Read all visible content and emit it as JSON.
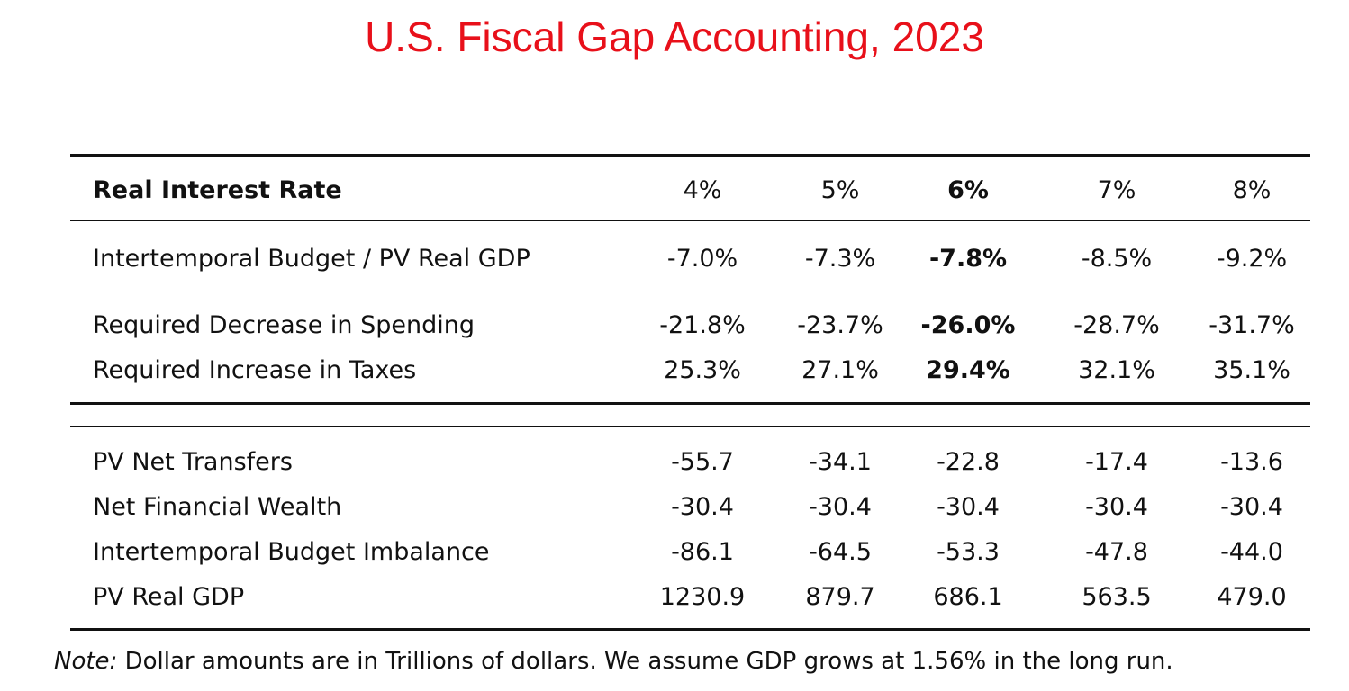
{
  "title": "U.S. Fiscal Gap Accounting, 2023",
  "table": {
    "header_label": "Real Interest Rate",
    "columns": [
      "4%",
      "5%",
      "6%",
      "7%",
      "8%"
    ],
    "highlight_column_index": 2,
    "upper_rows": [
      {
        "label": "Intertemporal Budget / PV Real GDP",
        "values": [
          "-7.0%",
          "-7.3%",
          "-7.8%",
          "-8.5%",
          "-9.2%"
        ]
      },
      {
        "label": "Required Decrease in Spending",
        "values": [
          "-21.8%",
          "-23.7%",
          "-26.0%",
          "-28.7%",
          "-31.7%"
        ]
      },
      {
        "label": "Required Increase in Taxes",
        "values": [
          "25.3%",
          "27.1%",
          "29.4%",
          "32.1%",
          "35.1%"
        ]
      }
    ],
    "lower_rows": [
      {
        "label": "PV Net Transfers",
        "values": [
          "-55.7",
          "-34.1",
          "-22.8",
          "-17.4",
          "-13.6"
        ]
      },
      {
        "label": "Net Financial Wealth",
        "values": [
          "-30.4",
          "-30.4",
          "-30.4",
          "-30.4",
          "-30.4"
        ]
      },
      {
        "label": "Intertemporal Budget Imbalance",
        "values": [
          "-86.1",
          "-64.5",
          "-53.3",
          "-47.8",
          "-44.0"
        ]
      },
      {
        "label": "PV Real GDP",
        "values": [
          "1230.9",
          "879.7",
          "686.1",
          "563.5",
          "479.0"
        ]
      }
    ]
  },
  "note": {
    "prefix": "Note:",
    "text": " Dollar amounts are in Trillions of dollars. We assume GDP grows at 1.56% in the long run."
  },
  "colors": {
    "title": "#e8101a",
    "text": "#111111"
  }
}
